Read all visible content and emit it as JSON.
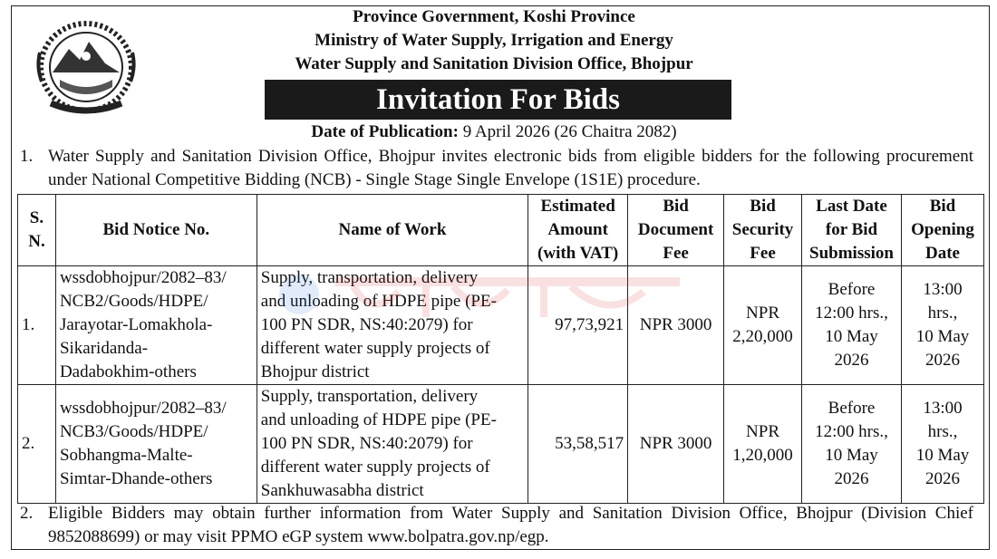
{
  "header": {
    "line1": "Province Government, Koshi Province",
    "line2": "Ministry of Water Supply, Irrigation and Energy",
    "line3": "Water Supply and Sanitation Division Office, Bhojpur",
    "title": "Invitation For Bids",
    "pub_label": "Date of Publication:",
    "pub_value": "9 April 2026 (26 Chaitra 2082)",
    "emblem_icon": "nepal-emblem-icon"
  },
  "para1": {
    "num": "1.",
    "text": "Water Supply and Sanitation Division Office, Bhojpur invites electronic bids from eligible bidders for the following procurement under National Competitive Bidding (NCB) - Single Stage Single Envelope (1S1E) procedure."
  },
  "table": {
    "headers": {
      "sn_a": "S.",
      "sn_b": "N.",
      "notice": "Bid Notice No.",
      "work": "Name of Work",
      "amount_a": "Estimated",
      "amount_b": "Amount",
      "amount_c": "(with VAT)",
      "doc_a": "Bid",
      "doc_b": "Document",
      "doc_c": "Fee",
      "sec_a": "Bid",
      "sec_b": "Security",
      "sec_c": "Fee",
      "last_a": "Last Date",
      "last_b": "for Bid",
      "last_c": "Submission",
      "open_a": "Bid",
      "open_b": "Opening",
      "open_c": "Date"
    },
    "rows": [
      {
        "sn": "1.",
        "notice": [
          "wssdobhojpur/2082–83/",
          "NCB2/Goods/HDPE/",
          "Jarayotar-Lomakhola-",
          "Sikaridanda-",
          "Dadabokhim-others"
        ],
        "work": [
          "Supply, transportation, delivery",
          "and unloading of HDPE pipe (PE-",
          "100 PN SDR, NS:40:2079) for",
          "different water supply projects of",
          "Bhojpur district"
        ],
        "amount": "97,73,921",
        "doc_fee": "NPR 3000",
        "security": [
          "NPR",
          "2,20,000"
        ],
        "last_date": [
          "Before",
          "12:00 hrs.,",
          "10 May",
          "2026"
        ],
        "opening": [
          "13:00",
          "hrs.,",
          "10 May",
          "2026"
        ]
      },
      {
        "sn": "2.",
        "notice": [
          "wssdobhojpur/2082–83/",
          "NCB3/Goods/HDPE/",
          "Sobhangma-Malte-",
          "Simtar-Dhande-others"
        ],
        "work": [
          "Supply, transportation, delivery",
          "and unloading of HDPE pipe (PE-",
          "100 PN SDR, NS:40:2079) for",
          "different water supply projects of",
          "Sankhuwasabha district"
        ],
        "amount": "53,58,517",
        "doc_fee": "NPR 3000",
        "security": [
          "NPR",
          "1,20,000"
        ],
        "last_date": [
          "Before",
          "12:00 hrs.,",
          "10 May",
          "2026"
        ],
        "opening": [
          "13:00",
          "hrs.,",
          "10 May",
          "2026"
        ]
      }
    ]
  },
  "para2": {
    "num": "2.",
    "text": "Eligible Bidders may obtain further information from Water Supply and Sanitation Division Office, Bhojpur (Division Chief 9852088699) or may visit PPMO eGP system www.bolpatra.gov.np/egp."
  }
}
